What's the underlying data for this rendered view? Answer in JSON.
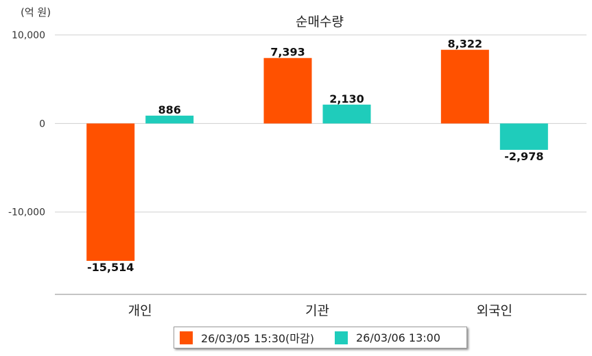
{
  "chart_data": {
    "type": "bar",
    "title": "순매수량",
    "unit_label": "(억 원)",
    "categories": [
      "개인",
      "기관",
      "외국인"
    ],
    "series": [
      {
        "name": "26/03/05 15:30(마감)",
        "color": "#ff5100",
        "values": [
          -15514,
          7393,
          8322
        ],
        "labels": [
          "-15,514",
          "7,393",
          "8,322"
        ]
      },
      {
        "name": "26/03/06 13:00",
        "color": "#1fccbb",
        "values": [
          886,
          2130,
          -2978
        ],
        "labels": [
          "886",
          "2,130",
          "-2,978"
        ]
      }
    ],
    "y_ticks": [
      {
        "value": 10000,
        "label": "10,000"
      },
      {
        "value": 0,
        "label": "0"
      },
      {
        "value": -10000,
        "label": "-10,000"
      }
    ],
    "ylim": [
      -19300,
      10000
    ],
    "grid": true,
    "legend": "bottom"
  }
}
